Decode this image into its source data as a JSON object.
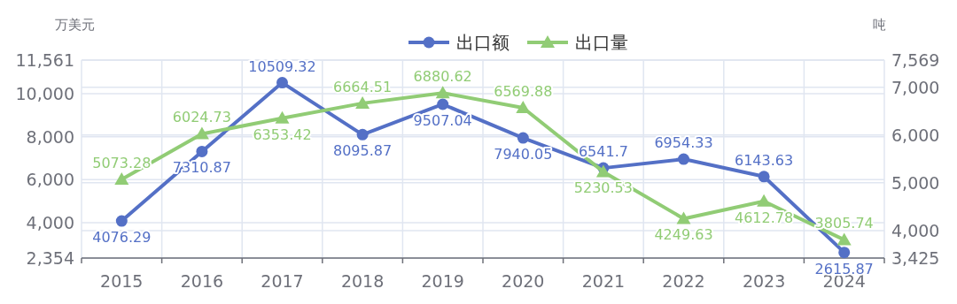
{
  "chart_data": {
    "type": "line",
    "categories": [
      "2015",
      "2016",
      "2017",
      "2018",
      "2019",
      "2020",
      "2021",
      "2022",
      "2023",
      "2024"
    ],
    "ylabel": "万美元",
    "y2label": "吨",
    "ylim": [
      2354,
      11561
    ],
    "yticks": [
      {
        "value": 2354,
        "label": "2,354"
      },
      {
        "value": 4000,
        "label": "4,000"
      },
      {
        "value": 6000,
        "label": "6,000"
      },
      {
        "value": 8000,
        "label": "8,000"
      },
      {
        "value": 10000,
        "label": "10,000"
      },
      {
        "value": 11561,
        "label": "11,561"
      }
    ],
    "y2lim": [
      3425,
      7569
    ],
    "y2ticks": [
      {
        "value": 3425,
        "label": "3,425"
      },
      {
        "value": 4000,
        "label": "4,000"
      },
      {
        "value": 5000,
        "label": "5,000"
      },
      {
        "value": 6000,
        "label": "6,000"
      },
      {
        "value": 7000,
        "label": "7,000"
      },
      {
        "value": 7569,
        "label": "7,569"
      }
    ],
    "series": [
      {
        "name": "出口额",
        "color": "#5470c6",
        "marker": "circle",
        "values": [
          4076.29,
          7310.87,
          10509.32,
          8095.87,
          9507.04,
          7940.05,
          6541.7,
          6954.33,
          6143.63,
          2615.87
        ]
      },
      {
        "name": "出口量",
        "color": "#91cc75",
        "marker": "triangle",
        "axis": "y2",
        "values": [
          5073.28,
          6024.73,
          6353.42,
          6664.51,
          6880.62,
          6569.88,
          5230.53,
          4249.63,
          4612.78,
          3805.74
        ]
      }
    ],
    "data_labels": true,
    "legend": "top",
    "grid": true
  }
}
